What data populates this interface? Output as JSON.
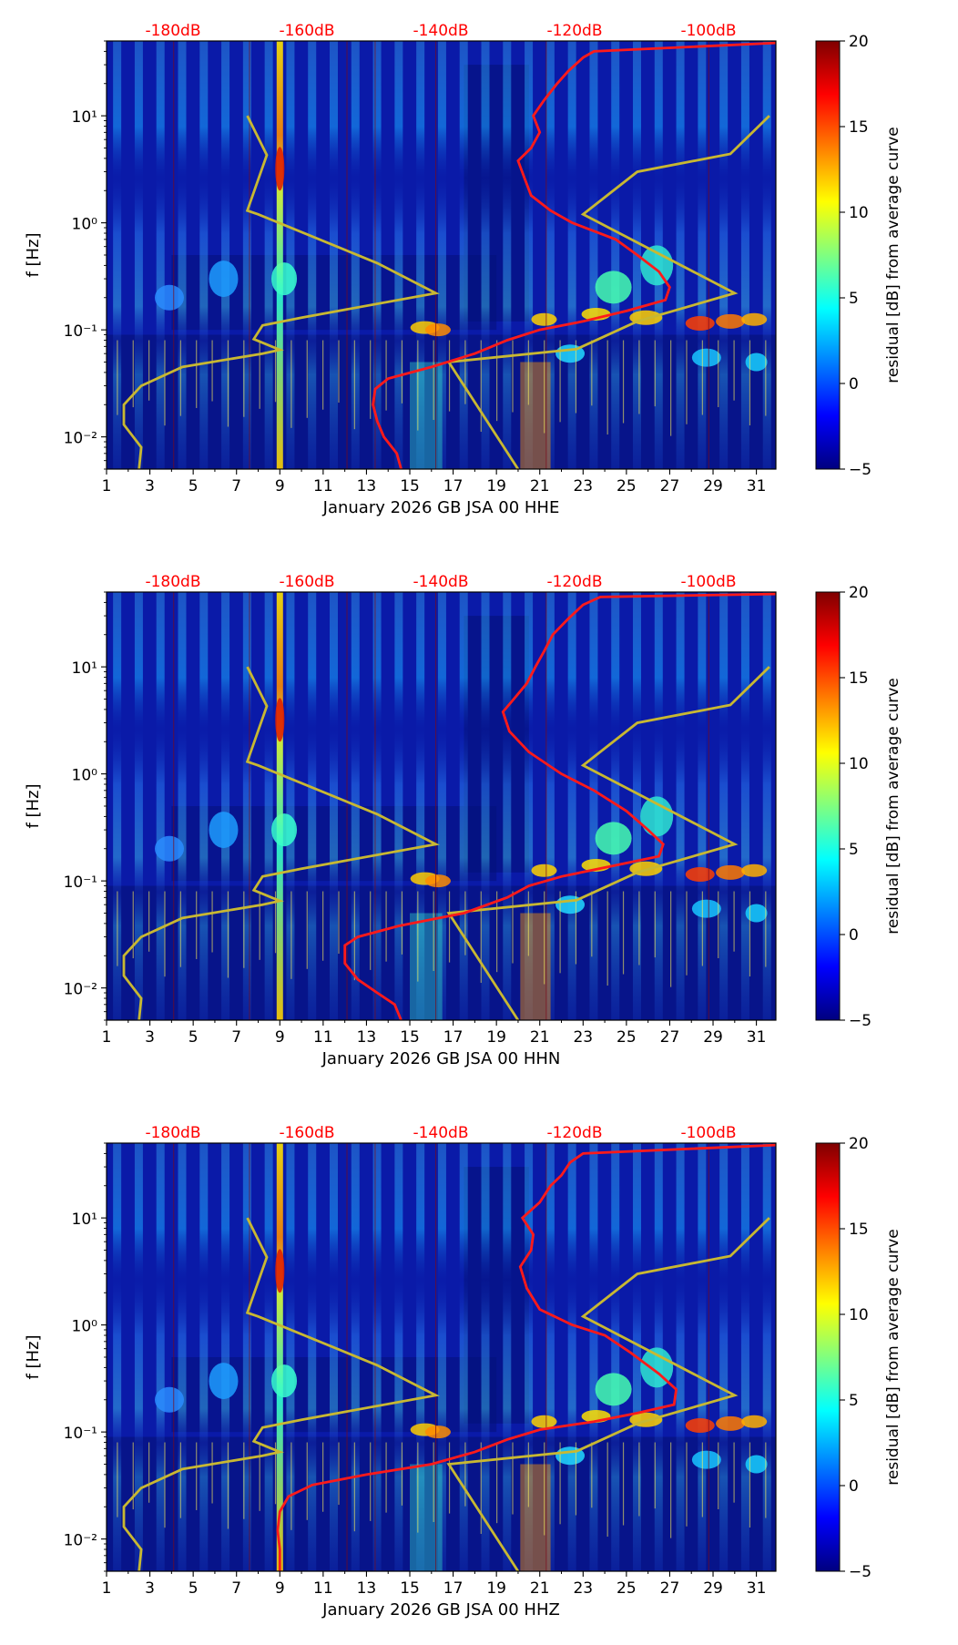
{
  "chart_data": [
    {
      "type": "heatmap",
      "title": "",
      "xlabel": "January 2026 GB JSA 00 HHE",
      "ylabel": "f [Hz]",
      "xlim": [
        1,
        31.9
      ],
      "ylim_hz": [
        0.005,
        50
      ],
      "y_scale": "log",
      "x_ticks": [
        "1",
        "3",
        "5",
        "7",
        "9",
        "11",
        "13",
        "15",
        "17",
        "19",
        "21",
        "23",
        "25",
        "27",
        "29",
        "31"
      ],
      "y_ticks": [
        {
          "v": 0.01,
          "label": "10⁻²"
        },
        {
          "v": 0.1,
          "label": "10⁻¹"
        },
        {
          "v": 1,
          "label": "10⁰"
        },
        {
          "v": 10,
          "label": "10¹"
        }
      ],
      "db_labels": [
        "-180dB",
        "-160dB",
        "-140dB",
        "-120dB",
        "-100dB"
      ],
      "colorbar": {
        "label": "residual [dB] from average curve",
        "min": -5,
        "max": 20,
        "ticks": [
          "20",
          "15",
          "10",
          "5",
          "0",
          "−5"
        ]
      },
      "bright_bands_day": [
        9
      ],
      "red_curve": [
        [
          14.6,
          0.005
        ],
        [
          14.4,
          0.007
        ],
        [
          13.8,
          0.01
        ],
        [
          13.5,
          0.014
        ],
        [
          13.3,
          0.02
        ],
        [
          13.4,
          0.028
        ],
        [
          14.0,
          0.035
        ],
        [
          16.0,
          0.045
        ],
        [
          18.0,
          0.06
        ],
        [
          19.5,
          0.08
        ],
        [
          21.0,
          0.1
        ],
        [
          23.0,
          0.12
        ],
        [
          25.0,
          0.15
        ],
        [
          26.8,
          0.19
        ],
        [
          27.0,
          0.25
        ],
        [
          26.5,
          0.35
        ],
        [
          25.5,
          0.5
        ],
        [
          24.5,
          0.7
        ],
        [
          22.5,
          1.0
        ],
        [
          21.5,
          1.3
        ],
        [
          20.6,
          1.8
        ],
        [
          20.3,
          2.6
        ],
        [
          20.0,
          3.8
        ],
        [
          20.6,
          5.0
        ],
        [
          21.0,
          7.0
        ],
        [
          20.7,
          10.0
        ],
        [
          21.2,
          14.0
        ],
        [
          21.8,
          20.0
        ],
        [
          22.3,
          26.0
        ],
        [
          23.0,
          35.0
        ],
        [
          23.5,
          40.0
        ],
        [
          31.9,
          48.0
        ]
      ],
      "yellow_curve": [
        [
          2.5,
          0.005
        ],
        [
          2.6,
          0.008
        ],
        [
          1.8,
          0.013
        ],
        [
          1.8,
          0.02
        ],
        [
          2.6,
          0.03
        ],
        [
          4.5,
          0.045
        ],
        [
          8.2,
          0.06
        ],
        [
          9.0,
          0.065
        ],
        [
          7.8,
          0.082
        ],
        [
          8.2,
          0.11
        ],
        [
          10.0,
          0.13
        ],
        [
          16.2,
          0.22
        ],
        [
          13.5,
          0.42
        ],
        [
          8.0,
          1.2
        ],
        [
          7.5,
          1.3
        ],
        [
          8.4,
          4.3
        ],
        [
          7.5,
          10.0
        ]
      ],
      "yellow_curve_2": [
        [
          20.0,
          0.005
        ],
        [
          16.8,
          0.05
        ],
        [
          22.7,
          0.066
        ],
        [
          25.5,
          0.12
        ],
        [
          30.0,
          0.22
        ],
        [
          23.0,
          1.2
        ],
        [
          25.5,
          3.0
        ],
        [
          29.8,
          4.4
        ],
        [
          31.6,
          10.0
        ]
      ]
    },
    {
      "type": "heatmap",
      "title": "",
      "xlabel": "January 2026 GB JSA 00 HHN",
      "ylabel": "f [Hz]",
      "xlim": [
        1,
        31.9
      ],
      "ylim_hz": [
        0.005,
        50
      ],
      "y_scale": "log",
      "x_ticks": [
        "1",
        "3",
        "5",
        "7",
        "9",
        "11",
        "13",
        "15",
        "17",
        "19",
        "21",
        "23",
        "25",
        "27",
        "29",
        "31"
      ],
      "y_ticks": [
        {
          "v": 0.01,
          "label": "10⁻²"
        },
        {
          "v": 0.1,
          "label": "10⁻¹"
        },
        {
          "v": 1,
          "label": "10⁰"
        },
        {
          "v": 10,
          "label": "10¹"
        }
      ],
      "db_labels": [
        "-180dB",
        "-160dB",
        "-140dB",
        "-120dB",
        "-100dB"
      ],
      "colorbar": {
        "label": "residual [dB] from average curve",
        "min": -5,
        "max": 20,
        "ticks": [
          "20",
          "15",
          "10",
          "5",
          "0",
          "−5"
        ]
      },
      "bright_bands_day": [
        9
      ],
      "red_curve": [
        [
          14.6,
          0.005
        ],
        [
          14.3,
          0.007
        ],
        [
          13.5,
          0.009
        ],
        [
          12.6,
          0.012
        ],
        [
          12.0,
          0.017
        ],
        [
          12.0,
          0.025
        ],
        [
          12.6,
          0.03
        ],
        [
          14.5,
          0.038
        ],
        [
          17.5,
          0.05
        ],
        [
          19.5,
          0.07
        ],
        [
          20.5,
          0.09
        ],
        [
          22.0,
          0.11
        ],
        [
          24.5,
          0.14
        ],
        [
          26.5,
          0.17
        ],
        [
          26.7,
          0.22
        ],
        [
          26.0,
          0.3
        ],
        [
          25.0,
          0.45
        ],
        [
          23.5,
          0.7
        ],
        [
          22.0,
          1.0
        ],
        [
          20.5,
          1.6
        ],
        [
          19.6,
          2.5
        ],
        [
          19.3,
          3.8
        ],
        [
          19.8,
          5.0
        ],
        [
          20.4,
          7.0
        ],
        [
          20.8,
          10.0
        ],
        [
          21.2,
          14.0
        ],
        [
          21.6,
          20.0
        ],
        [
          22.3,
          28.0
        ],
        [
          23.0,
          38.0
        ],
        [
          23.8,
          45.0
        ],
        [
          31.9,
          48.0
        ]
      ],
      "yellow_curve": [
        [
          2.5,
          0.005
        ],
        [
          2.6,
          0.008
        ],
        [
          1.8,
          0.013
        ],
        [
          1.8,
          0.02
        ],
        [
          2.6,
          0.03
        ],
        [
          4.5,
          0.045
        ],
        [
          8.2,
          0.06
        ],
        [
          9.0,
          0.065
        ],
        [
          7.8,
          0.082
        ],
        [
          8.2,
          0.11
        ],
        [
          10.0,
          0.13
        ],
        [
          16.2,
          0.22
        ],
        [
          13.5,
          0.42
        ],
        [
          8.0,
          1.2
        ],
        [
          7.5,
          1.3
        ],
        [
          8.4,
          4.3
        ],
        [
          7.5,
          10.0
        ]
      ],
      "yellow_curve_2": [
        [
          20.0,
          0.005
        ],
        [
          16.8,
          0.05
        ],
        [
          22.7,
          0.066
        ],
        [
          25.5,
          0.12
        ],
        [
          30.0,
          0.22
        ],
        [
          23.0,
          1.2
        ],
        [
          25.5,
          3.0
        ],
        [
          29.8,
          4.4
        ],
        [
          31.6,
          10.0
        ]
      ]
    },
    {
      "type": "heatmap",
      "title": "",
      "xlabel": "January 2026 GB JSA 00 HHZ",
      "ylabel": "f [Hz]",
      "xlim": [
        1,
        31.9
      ],
      "ylim_hz": [
        0.005,
        50
      ],
      "y_scale": "log",
      "x_ticks": [
        "1",
        "3",
        "5",
        "7",
        "9",
        "11",
        "13",
        "15",
        "17",
        "19",
        "21",
        "23",
        "25",
        "27",
        "29",
        "31"
      ],
      "y_ticks": [
        {
          "v": 0.01,
          "label": "10⁻²"
        },
        {
          "v": 0.1,
          "label": "10⁻¹"
        },
        {
          "v": 1,
          "label": "10⁰"
        },
        {
          "v": 10,
          "label": "10¹"
        }
      ],
      "db_labels": [
        "-180dB",
        "-160dB",
        "-140dB",
        "-120dB",
        "-100dB"
      ],
      "colorbar": {
        "label": "residual [dB] from average curve",
        "min": -5,
        "max": 20,
        "ticks": [
          "20",
          "15",
          "10",
          "5",
          "0",
          "−5"
        ]
      },
      "bright_bands_day": [
        9
      ],
      "red_curve": [
        [
          9.0,
          0.005
        ],
        [
          9.0,
          0.008
        ],
        [
          8.9,
          0.012
        ],
        [
          9.0,
          0.018
        ],
        [
          9.4,
          0.025
        ],
        [
          10.5,
          0.032
        ],
        [
          13.0,
          0.04
        ],
        [
          16.0,
          0.05
        ],
        [
          18.0,
          0.065
        ],
        [
          19.5,
          0.085
        ],
        [
          21.0,
          0.105
        ],
        [
          23.5,
          0.125
        ],
        [
          25.5,
          0.15
        ],
        [
          27.2,
          0.18
        ],
        [
          27.3,
          0.25
        ],
        [
          26.5,
          0.35
        ],
        [
          25.2,
          0.55
        ],
        [
          24.0,
          0.8
        ],
        [
          22.5,
          1.0
        ],
        [
          21.0,
          1.4
        ],
        [
          20.4,
          2.2
        ],
        [
          20.1,
          3.5
        ],
        [
          20.6,
          5.0
        ],
        [
          20.7,
          7.0
        ],
        [
          20.2,
          10.0
        ],
        [
          21.0,
          14.0
        ],
        [
          21.5,
          20.0
        ],
        [
          22.0,
          25.0
        ],
        [
          22.4,
          33.0
        ],
        [
          23.0,
          40.0
        ],
        [
          31.9,
          48.0
        ]
      ],
      "yellow_curve": [
        [
          2.5,
          0.005
        ],
        [
          2.6,
          0.008
        ],
        [
          1.8,
          0.013
        ],
        [
          1.8,
          0.02
        ],
        [
          2.6,
          0.03
        ],
        [
          4.5,
          0.045
        ],
        [
          8.2,
          0.06
        ],
        [
          9.0,
          0.065
        ],
        [
          7.8,
          0.082
        ],
        [
          8.2,
          0.11
        ],
        [
          10.0,
          0.13
        ],
        [
          16.2,
          0.22
        ],
        [
          13.5,
          0.42
        ],
        [
          8.0,
          1.2
        ],
        [
          7.5,
          1.3
        ],
        [
          8.4,
          4.3
        ],
        [
          7.5,
          10.0
        ]
      ],
      "yellow_curve_2": [
        [
          20.0,
          0.005
        ],
        [
          16.8,
          0.05
        ],
        [
          22.7,
          0.066
        ],
        [
          25.5,
          0.12
        ],
        [
          30.0,
          0.22
        ],
        [
          23.0,
          1.2
        ],
        [
          25.5,
          3.0
        ],
        [
          29.8,
          4.4
        ],
        [
          31.6,
          10.0
        ]
      ]
    }
  ]
}
